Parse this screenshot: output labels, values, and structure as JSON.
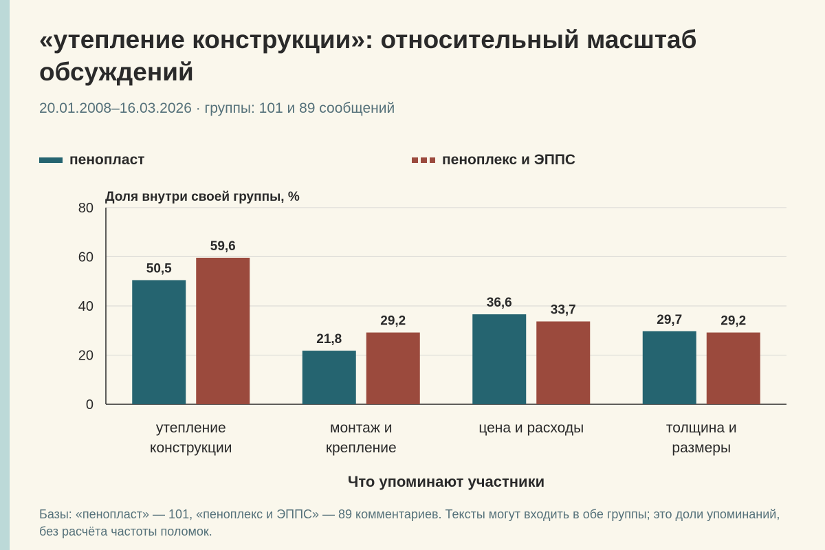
{
  "title": "«утепление конструкции»: относительный масштаб обсуждений",
  "subtitle": "20.01.2008–16.03.2026 · группы: 101 и 89 сообщений",
  "legend": [
    {
      "label": "пенопласт",
      "color": "#256470",
      "style": "solid"
    },
    {
      "label": "пеноплекс и ЭППС",
      "color": "#9b4a3d",
      "style": "dashed"
    }
  ],
  "caption": "Базы: «пенопласт» — 101, «пеноплекс и ЭППС» — 89 комментариев. Тексты могут входить в обе группы; это доли упоминаний, без расчёта частоты поломок.",
  "chart_data": {
    "type": "bar",
    "categories": [
      [
        "утепление",
        "конструкции"
      ],
      [
        "монтаж и",
        "крепление"
      ],
      [
        "цена и расходы"
      ],
      [
        "толщина и",
        "размеры"
      ]
    ],
    "series": [
      {
        "name": "пенопласт",
        "values": [
          50.5,
          21.8,
          36.6,
          29.7
        ],
        "labels": [
          "50,5",
          "21,8",
          "36,6",
          "29,7"
        ],
        "color": "#256470"
      },
      {
        "name": "пеноплекс и ЭППС",
        "values": [
          59.6,
          29.2,
          33.7,
          29.2
        ],
        "labels": [
          "59,6",
          "29,2",
          "33,7",
          "29,2"
        ],
        "color": "#9b4a3d"
      }
    ],
    "ylabel": "Доля внутри своей группы, %",
    "xlabel": "Что упоминают участники",
    "ylim": [
      0,
      80
    ],
    "yticks": [
      0,
      20,
      40,
      60,
      80
    ],
    "grid": true,
    "legend_position": "top"
  }
}
